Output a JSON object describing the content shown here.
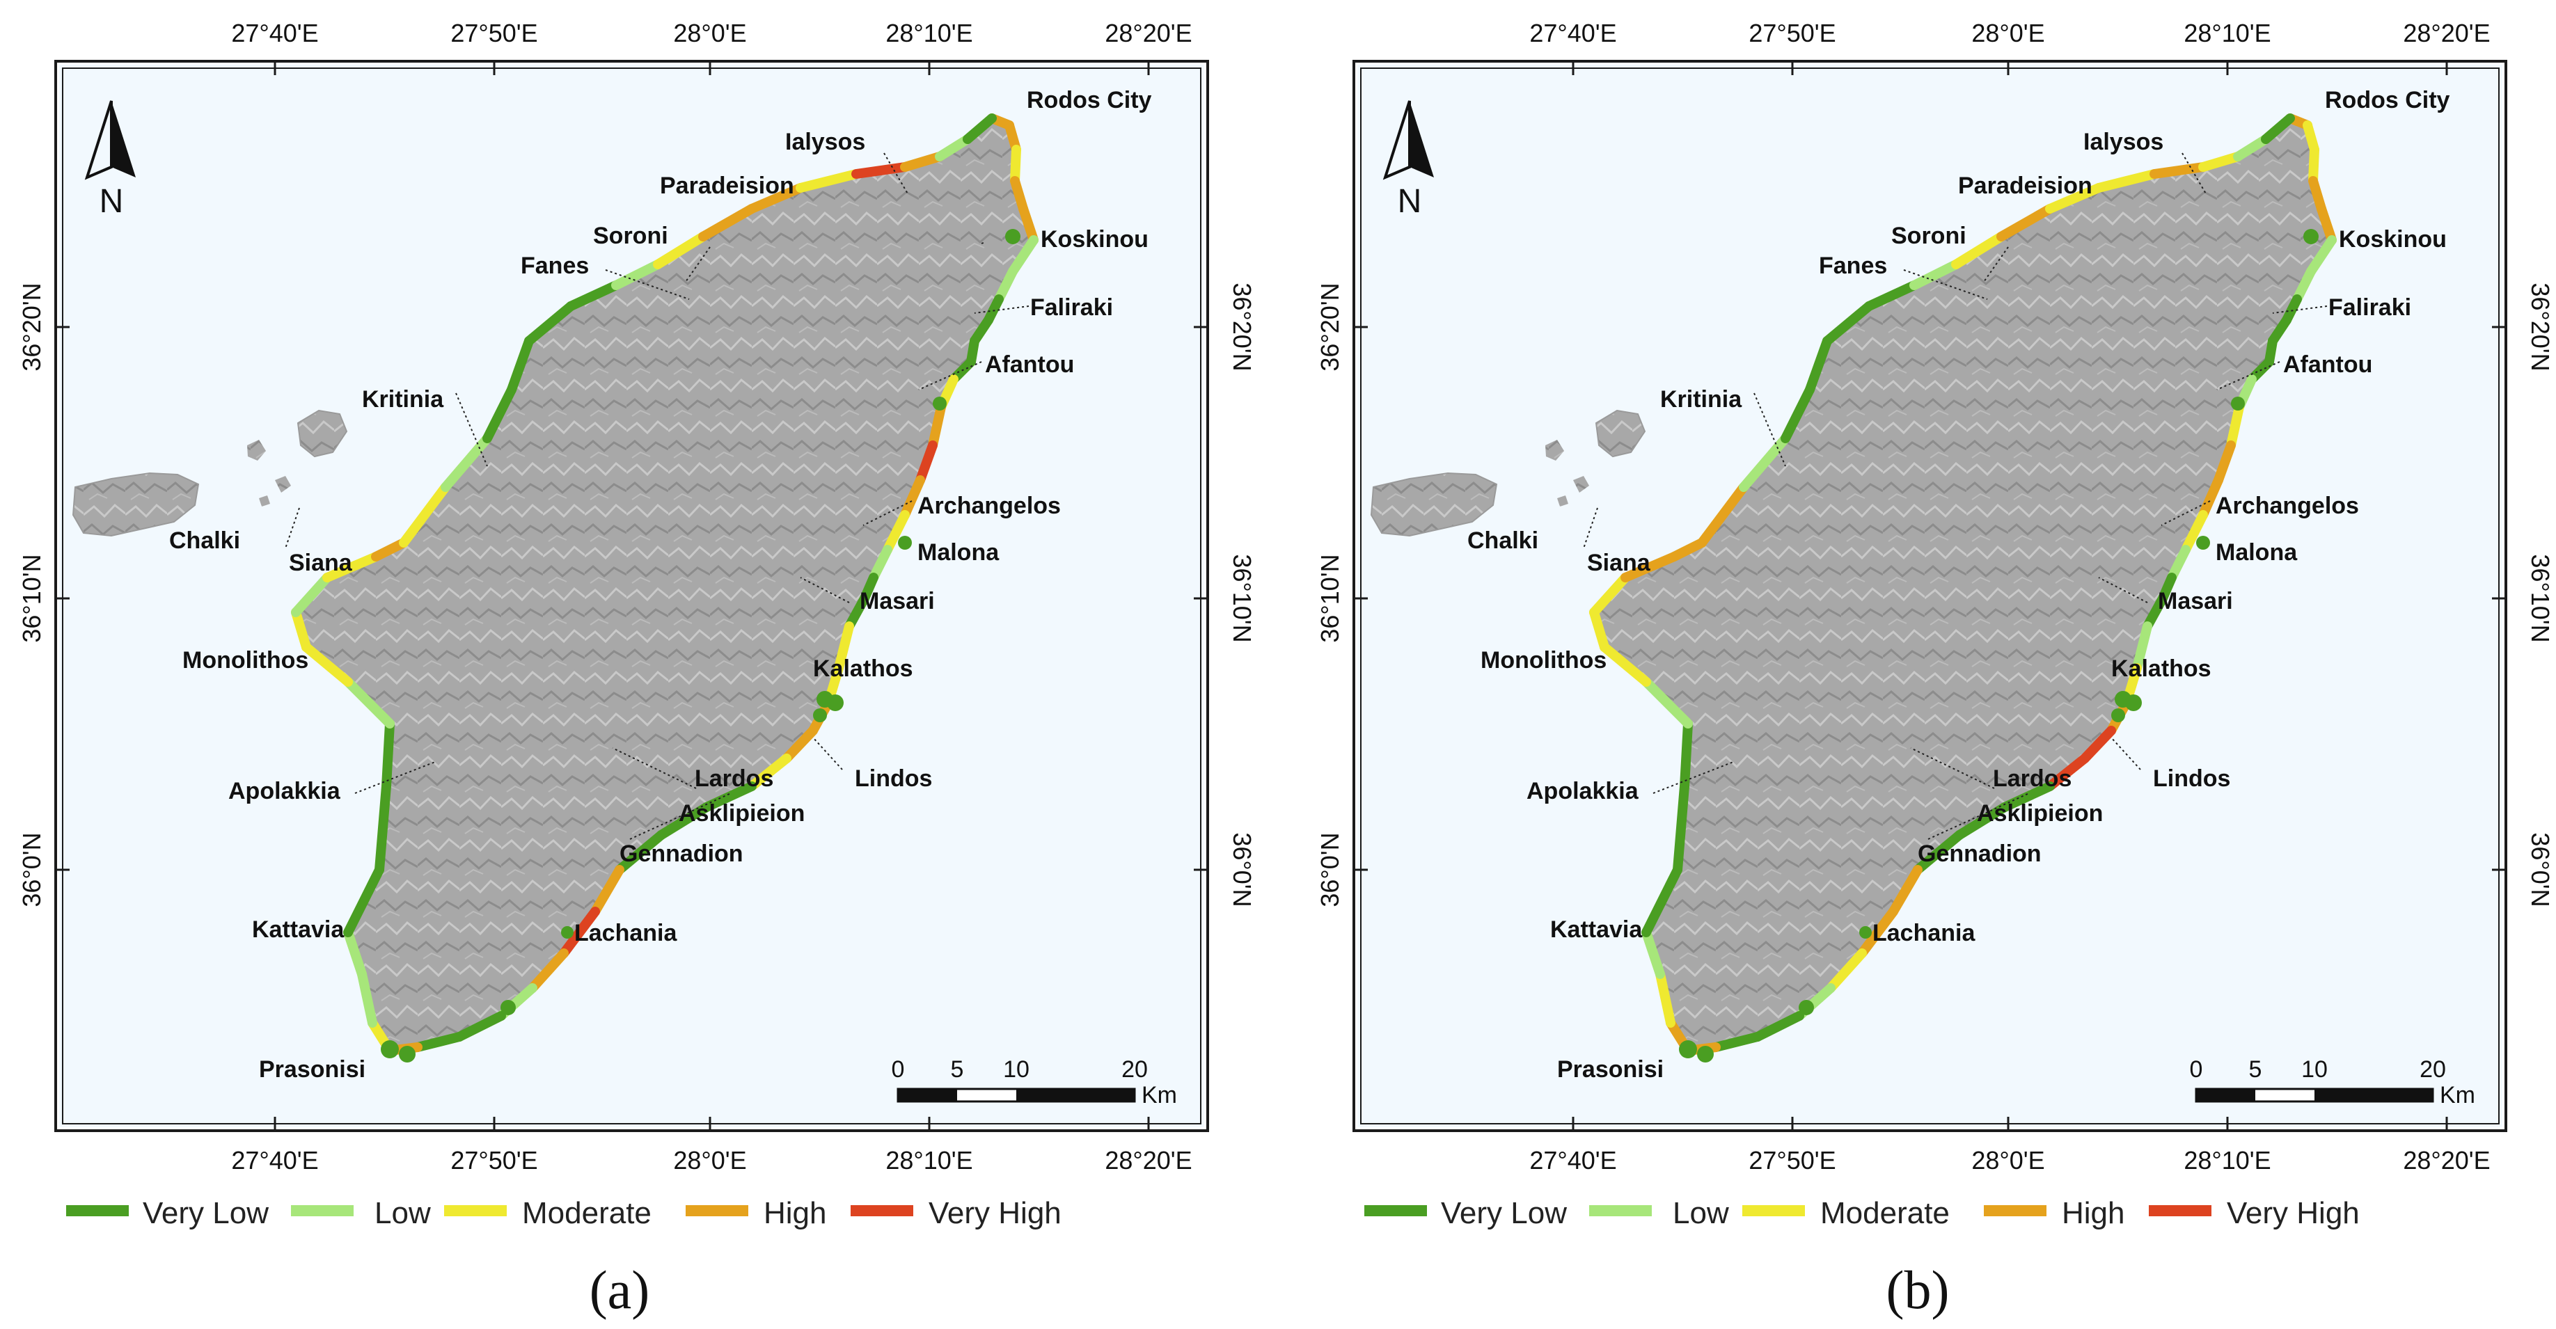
{
  "panels": [
    {
      "id": "a",
      "label": "(a)",
      "tag": "a",
      "segments": [
        [
          "#e5a21d",
          "#e5a21d",
          "#efe930",
          "#e5a21d",
          "#e5a21d",
          "#a7e67a",
          "#a7e67a",
          "#4a9e22",
          "#4a9e22",
          "#4a9e22",
          "#4a9e22",
          "#efe930",
          "#e5a21d",
          "#dd4320",
          "#e5a21d",
          "#efe930",
          "#a7e67a",
          "#4a9e22",
          "#4a9e22",
          "#efe930",
          "#efe930",
          "#e5a21d",
          "#e5a21d",
          "#efe930",
          "#4a9e22",
          "#4a9e22",
          "#4a9e22",
          "#e5a21d",
          "#dd4320",
          "#e5a21d",
          "#a7e67a"
        ],
        [
          "#4a9e22",
          "#4a9e22",
          "#e5a21d",
          "#efe930",
          "#a7e67a",
          "#a7e67a",
          "#4a9e22",
          "#4a9e22",
          "#4a9e22",
          "#a7e67a",
          "#efe930",
          "#efe930",
          "#a7e67a",
          "#efe930",
          "#e5a21d",
          "#efe930",
          "#a7e67a",
          "#4a9e22",
          "#4a9e22",
          "#4a9e22",
          "#4a9e22",
          "#a7e67a",
          "#efe930",
          "#e5a21d",
          "#e5a21d",
          "#efe930",
          "#dd4320",
          "#e5a21d",
          "#a7e67a"
        ]
      ]
    },
    {
      "id": "b",
      "label": "(b)",
      "tag": "b",
      "segments": [
        [
          "#e5a21d",
          "#efe930",
          "#efe930",
          "#e5a21d",
          "#e5a21d",
          "#a7e67a",
          "#a7e67a",
          "#4a9e22",
          "#4a9e22",
          "#4a9e22",
          "#4a9e22",
          "#a7e67a",
          "#efe930",
          "#e5a21d",
          "#e5a21d",
          "#efe930",
          "#a7e67a",
          "#4a9e22",
          "#4a9e22",
          "#a7e67a",
          "#efe930",
          "#e5a21d",
          "#dd4320",
          "#dd4320",
          "#4a9e22",
          "#4a9e22",
          "#4a9e22",
          "#e5a21d",
          "#e5a21d",
          "#efe930",
          "#a7e67a"
        ],
        [
          "#4a9e22",
          "#4a9e22",
          "#e5a21d",
          "#e5a21d",
          "#efe930",
          "#a7e67a",
          "#4a9e22",
          "#4a9e22",
          "#4a9e22",
          "#a7e67a",
          "#efe930",
          "#efe930",
          "#efe930",
          "#e5a21d",
          "#e5a21d",
          "#e5a21d",
          "#a7e67a",
          "#4a9e22",
          "#4a9e22",
          "#4a9e22",
          "#4a9e22",
          "#a7e67a",
          "#efe930",
          "#e5a21d",
          "#efe930",
          "#efe930",
          "#e5a21d",
          "#efe930",
          "#a7e67a"
        ]
      ]
    }
  ],
  "lon_ticks": [
    "27°40'E",
    "27°50'E",
    "28°0'E",
    "28°10'E",
    "28°20'E"
  ],
  "lat_ticks": [
    "36°20'N",
    "36°10'N",
    "36°0'N"
  ],
  "north_label": "N",
  "places": {
    "rodos_city": "Rodos City",
    "ialysos": "Ialysos",
    "paradeision": "Paradeision",
    "soroni": "Soroni",
    "fanes": "Fanes",
    "koskinou": "Koskinou",
    "faliraki": "Faliraki",
    "afantou": "Afantou",
    "kritinia": "Kritinia",
    "archangelos": "Archangelos",
    "malona": "Malona",
    "chalki": "Chalki",
    "siana": "Siana",
    "masari": "Masari",
    "monolithos": "Monolithos",
    "kalathos": "Kalathos",
    "lindos": "Lindos",
    "apolakkia": "Apolakkia",
    "lardos": "Lardos",
    "asklipieion": "Asklipieion",
    "gennadion": "Gennadion",
    "kattavia": "Kattavia",
    "lachania": "Lachania",
    "prasonisi": "Prasonisi"
  },
  "scalebar": {
    "t0": "0",
    "t5": "5",
    "t10": "10",
    "t20": "20",
    "unit": "Km"
  },
  "legend": [
    {
      "label": "Very Low",
      "color": "#4a9e22"
    },
    {
      "label": "Low",
      "color": "#a7e67a"
    },
    {
      "label": "Moderate",
      "color": "#efe930"
    },
    {
      "label": "High",
      "color": "#e5a21d"
    },
    {
      "label": "Very High",
      "color": "#dd4320"
    }
  ],
  "colors": {
    "sea": "#f2f9fe",
    "land": "#a7a7a7",
    "frame": "#1a1a1a"
  }
}
